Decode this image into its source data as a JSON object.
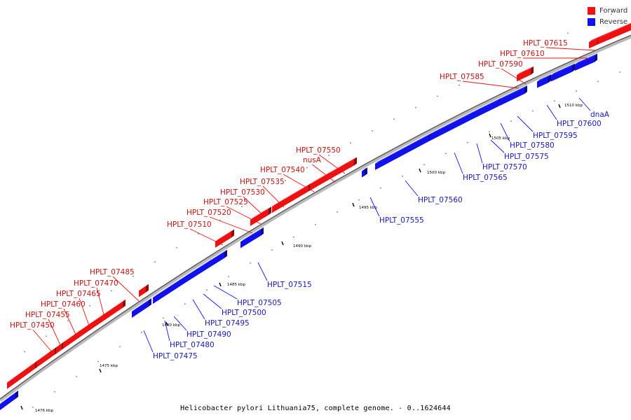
{
  "legend": {
    "forward_label": "Forward",
    "reverse_label": "Reverse",
    "forward_color": "#ee1111",
    "reverse_color": "#1111ee"
  },
  "caption": "Helicobacter pylori Lithuania75, complete genome. - 0..1624644",
  "ticks": [
    "1475 kbp",
    "1476 kbp",
    "1480 kbp",
    "1485 kbp",
    "1490 kbp",
    "1495 kbp",
    "1500 kbp",
    "1505 kbp",
    "1510 kbp"
  ],
  "genes_forward": [
    "HPLT_07450",
    "HPLT_07455",
    "HPLT_07460",
    "HPLT_07465",
    "HPLT_07470",
    "HPLT_07485",
    "HPLT_07510",
    "HPLT_07520",
    "HPLT_07525",
    "HPLT_07530",
    "HPLT_07535",
    "HPLT_07540",
    "nusA",
    "HPLT_07550",
    "HPLT_07585",
    "HPLT_07590",
    "HPLT_07610",
    "HPLT_07615"
  ],
  "genes_reverse": [
    "HPLT_07475",
    "HPLT_07480",
    "HPLT_07490",
    "HPLT_07495",
    "HPLT_07500",
    "HPLT_07505",
    "HPLT_07515",
    "HPLT_07555",
    "HPLT_07560",
    "HPLT_07565",
    "HPLT_07570",
    "HPLT_07575",
    "HPLT_07580",
    "HPLT_07595",
    "HPLT_07600",
    "dnaA"
  ]
}
